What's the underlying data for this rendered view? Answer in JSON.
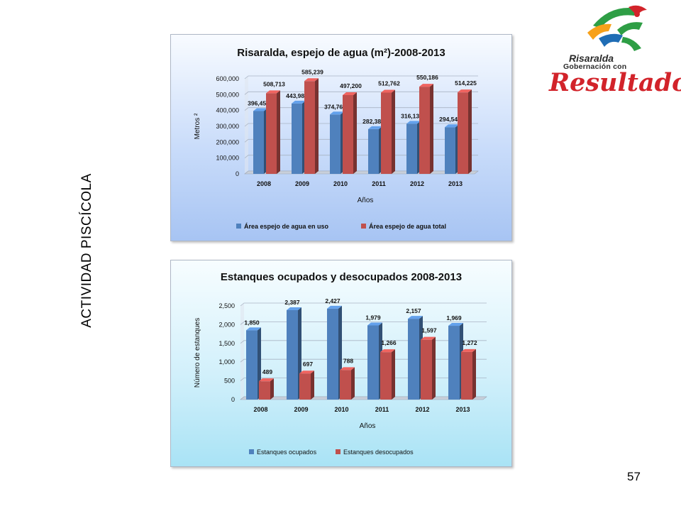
{
  "slide": {
    "side_title": "ACTIVIDAD PISCÍCOLA",
    "page_number": "57"
  },
  "logo": {
    "line1": "Risaralda",
    "line2": "Gobernación con",
    "line3": "Resultados",
    "colors": [
      "#2e9e45",
      "#f7a11a",
      "#1f6db5",
      "#d2232a"
    ]
  },
  "chart_data": [
    {
      "type": "bar",
      "title": "Risaralda, espejo de agua (m²)-2008-2013",
      "xlabel": "Años",
      "ylabel": "Metros ²",
      "categories": [
        "2008",
        "2009",
        "2010",
        "2011",
        "2012",
        "2013"
      ],
      "series": [
        {
          "name": "Área espejo de agua en uso",
          "values": [
            396455,
            443982,
            374768,
            282380,
            316131,
            294541
          ],
          "labels": [
            "396,455",
            "443,982",
            "374,768",
            "282,380",
            "316,131",
            "294,541"
          ],
          "color": "#4f81bd"
        },
        {
          "name": "Área espejo de agua total",
          "values": [
            508713,
            585239,
            497200,
            512762,
            550186,
            514225
          ],
          "labels": [
            "508,713",
            "585,239",
            "497,200",
            "512,762",
            "550,186",
            "514,225"
          ],
          "color": "#c0504d"
        }
      ],
      "ylim": [
        0,
        600000
      ],
      "yticks": [
        "0",
        "100,000",
        "200,000",
        "300,000",
        "400,000",
        "500,000",
        "600,000"
      ],
      "grid": true,
      "legend": "bottom"
    },
    {
      "type": "bar",
      "title": "Estanques ocupados y desocupados 2008-2013",
      "xlabel": "Años",
      "ylabel": "Número de estanques",
      "categories": [
        "2008",
        "2009",
        "2010",
        "2011",
        "2012",
        "2013"
      ],
      "series": [
        {
          "name": "Estanques ocupados",
          "values": [
            1850,
            2387,
            2427,
            1979,
            2157,
            1969
          ],
          "labels": [
            "1,850",
            "2,387",
            "2,427",
            "1,979",
            "2,157",
            "1,969"
          ],
          "color": "#4f81bd"
        },
        {
          "name": "Estanques desocupados",
          "values": [
            489,
            697,
            788,
            1266,
            1597,
            1272
          ],
          "labels": [
            "489",
            "697",
            "788",
            "1,266",
            "1,597",
            "1,272"
          ],
          "color": "#c0504d"
        }
      ],
      "ylim": [
        0,
        2500
      ],
      "yticks": [
        "0",
        "500",
        "1,000",
        "1,500",
        "2,000",
        "2,500"
      ],
      "grid": true,
      "legend": "bottom"
    }
  ]
}
